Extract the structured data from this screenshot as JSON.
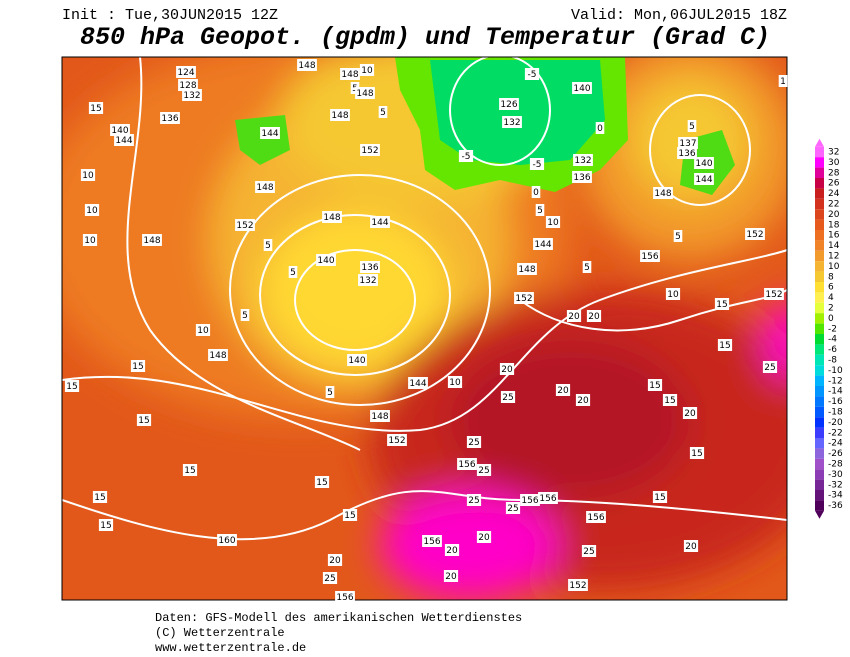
{
  "header": {
    "init": "Init : Tue,30JUN2015 12Z",
    "valid": "Valid: Mon,06JUL2015 18Z",
    "title": "850 hPa Geopot. (gpdm) und Temperatur (Grad C)"
  },
  "legend": {
    "labels": [
      32,
      30,
      28,
      26,
      24,
      22,
      20,
      18,
      16,
      14,
      12,
      10,
      8,
      6,
      4,
      2,
      0,
      -2,
      -4,
      -6,
      -8,
      -10,
      -12,
      -14,
      -16,
      -18,
      -20,
      -22,
      -24,
      -26,
      -28,
      -30,
      -32,
      -34,
      -36
    ],
    "colors": [
      "#ff66ff",
      "#ff00ff",
      "#e0009a",
      "#c80046",
      "#c81e1e",
      "#d2321e",
      "#dc461e",
      "#e65a1e",
      "#ee6e22",
      "#f08228",
      "#f29a2c",
      "#f5b432",
      "#f5c832",
      "#ffe032",
      "#fff050",
      "#e6ff3c",
      "#a0f000",
      "#50e600",
      "#00dc32",
      "#00e678",
      "#00e6b4",
      "#00dcdc",
      "#00b4ff",
      "#0096ff",
      "#0078ff",
      "#005aff",
      "#0032ff",
      "#3c3cff",
      "#6464ff",
      "#8c64dc",
      "#a050c8",
      "#8c3cb4",
      "#782896",
      "#641478",
      "#50005a"
    ]
  },
  "map": {
    "labels": [
      148,
      148,
      10,
      5,
      148,
      5,
      148,
      152,
      148,
      152,
      5,
      148,
      144,
      140,
      136,
      132,
      5,
      5,
      140,
      5,
      144,
      10,
      148,
      152,
      10,
      10,
      148,
      10,
      148,
      15,
      15,
      15,
      15,
      15,
      15,
      160,
      15,
      15,
      20,
      25,
      156,
      15,
      10,
      140,
      144,
      136,
      132,
      128,
      124,
      144,
      126,
      132,
      -5,
      140,
      0,
      -5,
      -5,
      132,
      136,
      0,
      5,
      10,
      144,
      148,
      5,
      156,
      152,
      10,
      15,
      152,
      15,
      20,
      20,
      20,
      20,
      20,
      15,
      15,
      25,
      20,
      15,
      25,
      156,
      25,
      25,
      15,
      156,
      156,
      25,
      156,
      20,
      156,
      20,
      20,
      152,
      25,
      20,
      5,
      137,
      136,
      140,
      144,
      148,
      5,
      152,
      25,
      1
    ]
  },
  "footer": {
    "lines": [
      "Daten: GFS-Modell des amerikanischen Wetterdienstes",
      "(C) Wetterzentrale",
      "www.wetterzentrale.de"
    ]
  }
}
